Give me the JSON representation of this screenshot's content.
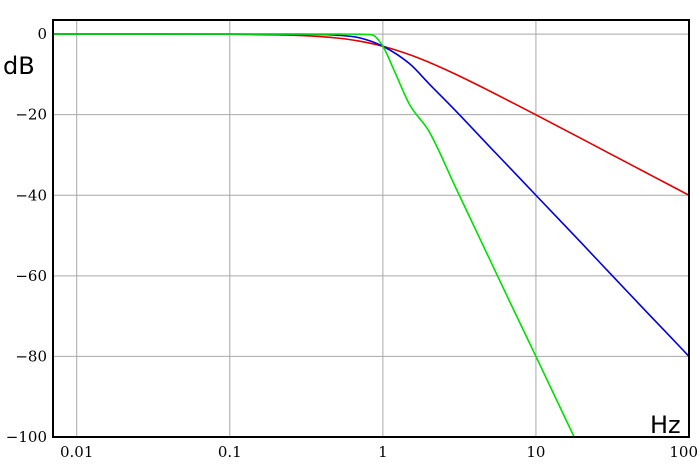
{
  "chart_data": {
    "type": "line",
    "title": "",
    "xlabel": "Hz",
    "ylabel": "dB",
    "xscale": "log",
    "xlim": [
      0.007,
      100
    ],
    "ylim": [
      -100,
      3.5
    ],
    "grid": true,
    "legend": "none",
    "x_ticks": [
      {
        "value": 0.01,
        "label": "0.01"
      },
      {
        "value": 0.1,
        "label": "0.1"
      },
      {
        "value": 1,
        "label": "1"
      },
      {
        "value": 10,
        "label": "10"
      },
      {
        "value": 100,
        "label": "100"
      }
    ],
    "y_ticks": [
      {
        "value": 0,
        "label": "0"
      },
      {
        "value": -20,
        "label": "−20"
      },
      {
        "value": -40,
        "label": "−40"
      },
      {
        "value": -60,
        "label": "−60"
      },
      {
        "value": -80,
        "label": "−80"
      },
      {
        "value": -100,
        "label": "−100"
      }
    ],
    "series": [
      {
        "color": "#e00000",
        "x": [
          0.007,
          0.01,
          0.03,
          0.1,
          0.2,
          0.3,
          0.5,
          0.7,
          1,
          1.5,
          2,
          3,
          5,
          7,
          10,
          20,
          30,
          50,
          70,
          100
        ],
        "y": [
          0,
          0,
          0,
          -0.04,
          -0.17,
          -0.37,
          -0.97,
          -1.73,
          -3.01,
          -5.12,
          -6.99,
          -10.0,
          -14.15,
          -17.0,
          -20.04,
          -26.02,
          -29.55,
          -33.98,
          -36.9,
          -40.0
        ]
      },
      {
        "color": "#0000e0",
        "x": [
          0.007,
          0.01,
          0.1,
          0.2,
          0.3,
          0.5,
          0.7,
          1,
          1.5,
          2,
          3,
          5,
          7,
          10,
          20,
          30,
          50,
          70,
          100
        ],
        "y": [
          0,
          0,
          0,
          -0.01,
          -0.03,
          -0.26,
          -0.9,
          -3.01,
          -7.4,
          -12.3,
          -19.1,
          -28.0,
          -33.8,
          -40.0,
          -52.0,
          -59.1,
          -68.0,
          -73.8,
          -80.0
        ]
      },
      {
        "color": "#00e000",
        "x": [
          0.007,
          0.1,
          0.3,
          0.5,
          0.7,
          0.85,
          1,
          1.2,
          1.5,
          2,
          3,
          5,
          7,
          10,
          15,
          20
        ],
        "y": [
          0,
          0,
          0,
          0,
          -0.02,
          -0.2,
          -3.01,
          -9.5,
          -17.6,
          -24.1,
          -38.2,
          -56.0,
          -67.7,
          -80.0,
          -94.1,
          -104.1
        ]
      }
    ]
  }
}
